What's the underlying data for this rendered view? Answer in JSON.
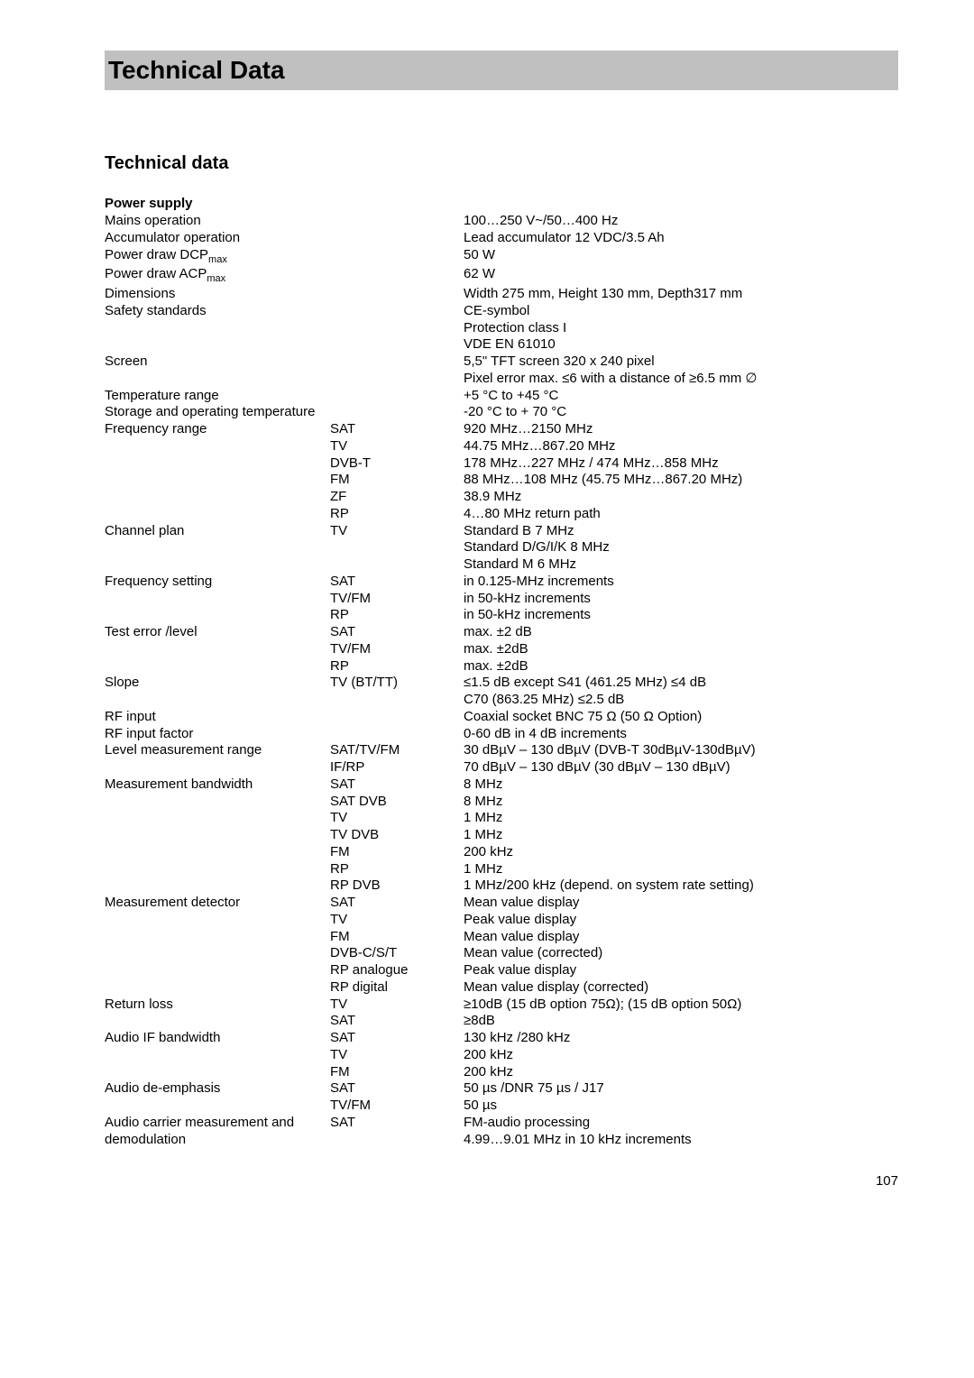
{
  "title_bar": "Technical Data",
  "heading": "Technical data",
  "section1": "Power supply",
  "rows": [
    {
      "c1": "Mains operation",
      "c2": "",
      "c3": "100…250 V~/50…400 Hz"
    },
    {
      "c1": "Accumulator operation",
      "c2": "",
      "c3": "Lead accumulator 12 VDC/3.5 Ah"
    },
    {
      "c1": "Power draw DCP",
      "sub": "max",
      "c2": "",
      "c3": "50 W"
    },
    {
      "c1": "Power draw ACP",
      "sub": "max",
      "c2": "",
      "c3": "62 W"
    },
    {
      "c1": "Dimensions",
      "c2": "",
      "c3": "Width 275 mm, Height 130 mm, Depth317 mm"
    },
    {
      "c1": "Safety standards",
      "c2": "",
      "c3": "CE-symbol"
    },
    {
      "c1": "",
      "c2": "",
      "c3": "Protection class I"
    },
    {
      "c1": "",
      "c2": "",
      "c3": "VDE EN 61010"
    },
    {
      "c1": "Screen",
      "c2": "",
      "c3": "5,5\" TFT screen 320 x 240 pixel"
    },
    {
      "c1": "",
      "c2": "",
      "c3": "Pixel error max. ≤6 with a distance of ≥6.5 mm ∅"
    },
    {
      "c1": "Temperature range",
      "c2": "",
      "c3": "+5 °C to +45 °C"
    },
    {
      "c1": "Storage and operating temperature",
      "c2": "",
      "c3": "-20 °C to + 70 °C"
    },
    {
      "c1": "Frequency range",
      "c2": "SAT",
      "c3": "920 MHz…2150 MHz"
    },
    {
      "c1": "",
      "c2": "TV",
      "c3": "44.75 MHz…867.20 MHz"
    },
    {
      "c1": "",
      "c2": "DVB-T",
      "c3": "178 MHz…227 MHz / 474 MHz…858 MHz"
    },
    {
      "c1": "",
      "c2": "FM",
      "c3": "88 MHz…108 MHz (45.75 MHz…867.20 MHz)"
    },
    {
      "c1": "",
      "c2": "ZF",
      "c3": "38.9 MHz"
    },
    {
      "c1": "",
      "c2": "RP",
      "c3": "4…80 MHz return path"
    },
    {
      "c1": "Channel plan",
      "c2": "TV",
      "c3": "Standard B 7 MHz"
    },
    {
      "c1": "",
      "c2": "",
      "c3": "Standard D/G/I/K 8 MHz"
    },
    {
      "c1": "",
      "c2": "",
      "c3": "Standard M 6 MHz"
    },
    {
      "c1": "Frequency setting",
      "c2": "SAT",
      "c3": "in 0.125-MHz increments"
    },
    {
      "c1": "",
      "c2": "TV/FM",
      "c3": "in 50-kHz increments"
    },
    {
      "c1": "",
      "c2": "RP",
      "c3": "in 50-kHz increments"
    },
    {
      "c1": "Test error /level",
      "c2": "SAT",
      "c3": "max. ±2 dB"
    },
    {
      "c1": "",
      "c2": "TV/FM",
      "c3": "max. ±2dB"
    },
    {
      "c1": "",
      "c2": "RP",
      "c3": "max. ±2dB"
    },
    {
      "c1": "Slope",
      "c2": "TV (BT/TT)",
      "c3": "≤1.5 dB except S41 (461.25 MHz) ≤4 dB"
    },
    {
      "c1": "",
      "c2": "",
      "c3": "C70 (863.25 MHz) ≤2.5 dB"
    },
    {
      "c1": "RF input",
      "c2": "",
      "c3": "Coaxial socket BNC 75 Ω (50 Ω Option)"
    },
    {
      "c1": "RF input factor",
      "c2": "",
      "c3": "0-60 dB in 4 dB increments"
    },
    {
      "c1": "Level measurement range",
      "c2": "SAT/TV/FM",
      "c3": "30 dBµV – 130 dBµV (DVB-T 30dBµV-130dBµV)"
    },
    {
      "c1": "",
      "c2": "IF/RP",
      "c3": "70 dBµV – 130 dBµV (30 dBµV – 130 dBµV)"
    },
    {
      "c1": "Measurement bandwidth",
      "c2": "SAT",
      "c3": "8 MHz"
    },
    {
      "c1": "",
      "c2": "SAT DVB",
      "c3": "8 MHz"
    },
    {
      "c1": "",
      "c2": "TV",
      "c3": "1 MHz"
    },
    {
      "c1": "",
      "c2": "TV DVB",
      "c3": "1 MHz"
    },
    {
      "c1": "",
      "c2": "FM",
      "c3": "200 kHz"
    },
    {
      "c1": "",
      "c2": "RP",
      "c3": "1 MHz"
    },
    {
      "c1": "",
      "c2": "RP DVB",
      "c3": "1 MHz/200 kHz (depend. on system rate setting)"
    },
    {
      "c1": "Measurement detector",
      "c2": "SAT",
      "c3": "Mean value display"
    },
    {
      "c1": "",
      "c2": "TV",
      "c3": "Peak value display"
    },
    {
      "c1": "",
      "c2": "FM",
      "c3": "Mean value display"
    },
    {
      "c1": "",
      "c2": "DVB-C/S/T",
      "c3": "Mean value (corrected)"
    },
    {
      "c1": "",
      "c2": "RP analogue",
      "c3": "Peak value display"
    },
    {
      "c1": "",
      "c2": "RP digital",
      "c3": "Mean value display (corrected)"
    },
    {
      "c1": "Return loss",
      "c2": "TV",
      "c3": "≥10dB (15 dB option 75Ω); (15 dB option 50Ω)"
    },
    {
      "c1": "",
      "c2": "SAT",
      "c3": "≥8dB"
    },
    {
      "c1": "Audio IF bandwidth",
      "c2": "SAT",
      "c3": "130 kHz /280 kHz"
    },
    {
      "c1": "",
      "c2": "TV",
      "c3": "200 kHz"
    },
    {
      "c1": "",
      "c2": "FM",
      "c3": "200 kHz"
    },
    {
      "c1": "Audio de-emphasis",
      "c2": "SAT",
      "c3": "50 µs /DNR 75 µs / J17"
    },
    {
      "c1": "",
      "c2": "TV/FM",
      "c3": "50 µs"
    },
    {
      "c1": "Audio carrier measurement and",
      "c2": "SAT",
      "c3": "FM-audio processing"
    },
    {
      "c1": "demodulation",
      "c2": "",
      "c3": "4.99…9.01 MHz in 10 kHz increments"
    }
  ],
  "page_number": "107"
}
